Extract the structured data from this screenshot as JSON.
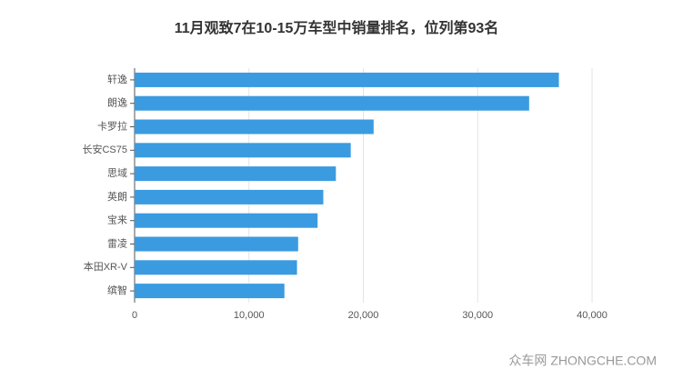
{
  "chart_data": {
    "type": "barh",
    "title": "11月观致7在10-15万车型中销量排名，位列第93名",
    "categories": [
      "轩逸",
      "朗逸",
      "卡罗拉",
      "长安CS75",
      "思域",
      "英朗",
      "宝来",
      "雷凌",
      "本田XR-V",
      "缤智"
    ],
    "values": [
      37100,
      34500,
      20900,
      18900,
      17600,
      16500,
      16000,
      14300,
      14200,
      13100
    ],
    "color": "#3a9be0",
    "xlim": [
      0,
      40000
    ],
    "xticks": [
      0,
      {
        "value": 10000,
        "label": "10,000"
      },
      {
        "value": 20000,
        "label": "20,000"
      },
      {
        "value": 30000,
        "label": "30,000"
      },
      {
        "value": 40000,
        "label": "40,000"
      }
    ],
    "grid": true
  },
  "watermark": "众车网 ZHONGCHE.COM"
}
